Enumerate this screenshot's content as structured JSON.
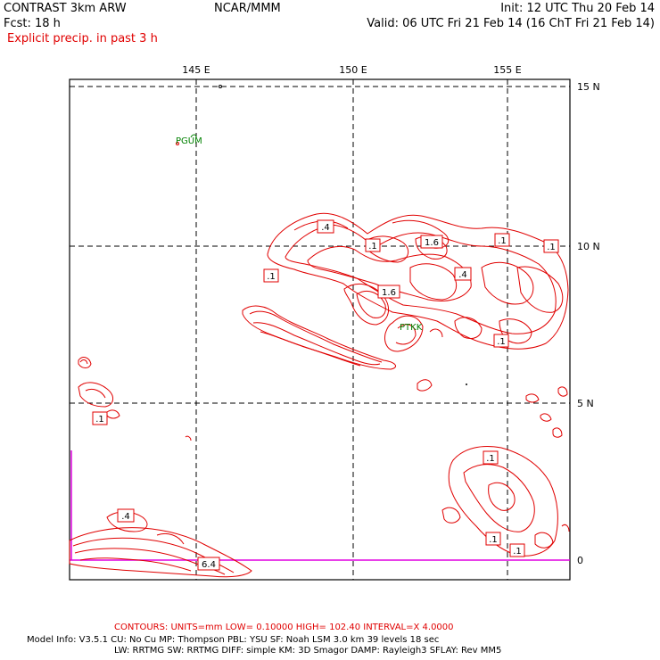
{
  "header": {
    "model": "CONTRAST  3km ARW",
    "org": "NCAR/MMM",
    "init": "Init: 12 UTC Thu 20 Feb 14",
    "fcst": "Fcst:   18 h",
    "valid": "Valid: 06 UTC Fri 21 Feb 14 (16 ChT Fri 21 Feb 14)",
    "field": "Explicit precip. in past 3 h"
  },
  "axes": {
    "lon_labels": [
      "145 E",
      "150 E",
      "155 E"
    ],
    "lat_labels": [
      "15 N",
      "10 N",
      "5 N",
      "0"
    ]
  },
  "stations": [
    "PGUM",
    "PTKK"
  ],
  "contour_labels": [
    ".4",
    ".1",
    "1.6",
    ".1",
    ".1",
    ".1",
    "1.6",
    ".4",
    ".1",
    ".1",
    ".1",
    ".1",
    ".4",
    "6.4",
    ".1"
  ],
  "footer": {
    "contours": "CONTOURS:  UNITS=mm  LOW= 0.10000     HIGH=  102.40     INTERVAL=X  4.0000",
    "model_line1": "Model Info: V3.5.1    CU: No Cu     MP: Thompson     PBL: YSU       SF: Noah LSM     3.0 km   39 levels    18 sec",
    "model_line2": "LW: RRTMG    SW: RRTMG   DIFF: simple KM: 3D Smagor DAMP: Rayleigh3   SFLAY: Rev MM5"
  },
  "colors": {
    "contour": "#e00000",
    "station": "#008000",
    "boundary": "#e000e0",
    "grid": "#000000"
  }
}
